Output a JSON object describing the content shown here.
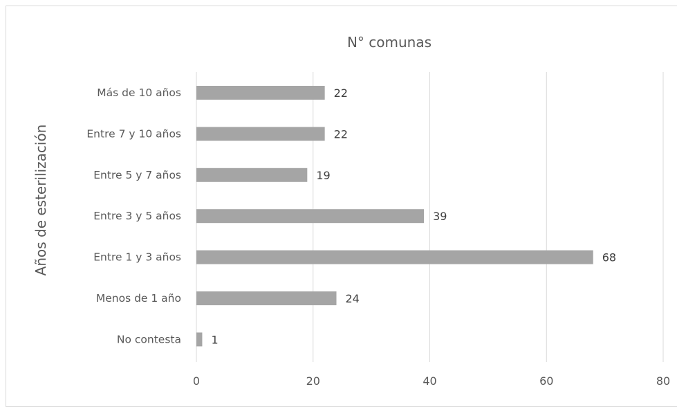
{
  "chart_data": {
    "type": "bar",
    "orientation": "horizontal",
    "title": "N° comunas",
    "xlabel": "",
    "ylabel": "Años de esterilización",
    "categories": [
      "Más de 10 años",
      "Entre 7 y 10 años",
      "Entre 5 y 7 años",
      "Entre 3 y 5 años",
      "Entre 1 y 3 años",
      "Menos de 1 año",
      "No contesta"
    ],
    "values": [
      22,
      22,
      19,
      39,
      68,
      24,
      1
    ],
    "xlim": [
      0,
      80
    ],
    "xticks": [
      0,
      20,
      40,
      60,
      80
    ],
    "grid": true,
    "legend": "none",
    "colors": {
      "bar": "#a5a5a5",
      "grid": "#d9d9d9",
      "text": "#595959",
      "border": "#d9d9d9"
    }
  }
}
